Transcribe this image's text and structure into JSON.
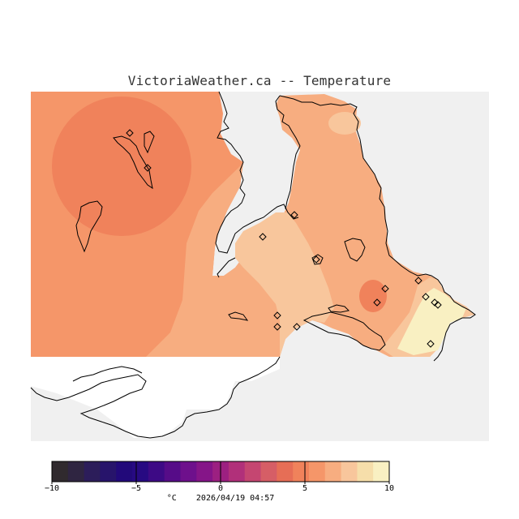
{
  "title": "VictoriaWeather.ca -- Temperature",
  "colorbar": {
    "min": -10,
    "max": 10,
    "step": 1,
    "ticks": [
      {
        "value": -10,
        "label": "−10"
      },
      {
        "value": -5,
        "label": "−5"
      },
      {
        "value": 0,
        "label": "0"
      },
      {
        "value": 5,
        "label": "5"
      },
      {
        "value": 10,
        "label": "10"
      }
    ],
    "unit": "°C",
    "timestamp": "2026/04/19 04:57",
    "colors": [
      "#302a2e",
      "#2f2541",
      "#2c1d5a",
      "#27146b",
      "#22097a",
      "#270a82",
      "#3d0a85",
      "#560c88",
      "#6e108c",
      "#851588",
      "#9c2081",
      "#b1307a",
      "#c54671",
      "#d65e66",
      "#e66e56",
      "#f0825b",
      "#f59669",
      "#f7ad80",
      "#f8c69c",
      "#f6deaa",
      "#f9f0c2"
    ]
  },
  "colors": {
    "background_region": "#f0f0f0",
    "land_outside": "#ffffff",
    "coastline": "#000000",
    "station_marker": "#000000"
  }
}
